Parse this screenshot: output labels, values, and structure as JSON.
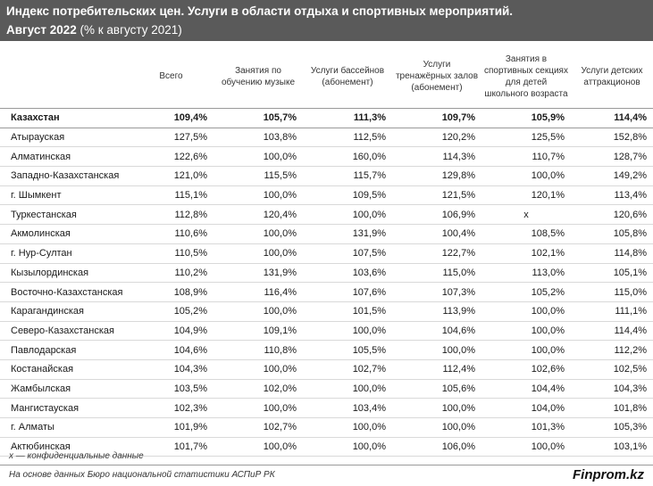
{
  "header": {
    "title": "Индекс потребительских цен. Услуги в области отдыха и спортивных мероприятий.",
    "subtitle_bold": "Август 2022",
    "subtitle_rest": " (% к августу 2021)"
  },
  "chart_data": {
    "type": "table",
    "columns": [
      "",
      "Всего",
      "Занятия по обучению музыке",
      "Услуги бассейнов (абонемент)",
      "Услуги тренажёрных залов (абонемент)",
      "Занятия в спортивных секциях для детей школьного возраста",
      "Услуги детских аттракционов"
    ],
    "rows": [
      [
        "Казахстан",
        "109,4%",
        "105,7%",
        "111,3%",
        "109,7%",
        "105,9%",
        "114,4%"
      ],
      [
        "Атырауская",
        "127,5%",
        "103,8%",
        "112,5%",
        "120,2%",
        "125,5%",
        "152,8%"
      ],
      [
        "Алматинская",
        "122,6%",
        "100,0%",
        "160,0%",
        "114,3%",
        "110,7%",
        "128,7%"
      ],
      [
        "Западно-Казахстанская",
        "121,0%",
        "115,5%",
        "115,7%",
        "129,8%",
        "100,0%",
        "149,2%"
      ],
      [
        "г. Шымкент",
        "115,1%",
        "100,0%",
        "109,5%",
        "121,5%",
        "120,1%",
        "113,4%"
      ],
      [
        "Туркестанская",
        "112,8%",
        "120,4%",
        "100,0%",
        "106,9%",
        "x",
        "120,6%"
      ],
      [
        "Акмолинская",
        "110,6%",
        "100,0%",
        "131,9%",
        "100,4%",
        "108,5%",
        "105,8%"
      ],
      [
        "г. Нур-Султан",
        "110,5%",
        "100,0%",
        "107,5%",
        "122,7%",
        "102,1%",
        "114,8%"
      ],
      [
        "Кызылординская",
        "110,2%",
        "131,9%",
        "103,6%",
        "115,0%",
        "113,0%",
        "105,1%"
      ],
      [
        "Восточно-Казахстанская",
        "108,9%",
        "116,4%",
        "107,6%",
        "107,3%",
        "105,2%",
        "115,0%"
      ],
      [
        "Карагандинская",
        "105,2%",
        "100,0%",
        "101,5%",
        "113,9%",
        "100,0%",
        "111,1%"
      ],
      [
        "Северо-Казахстанская",
        "104,9%",
        "109,1%",
        "100,0%",
        "104,6%",
        "100,0%",
        "114,4%"
      ],
      [
        "Павлодарская",
        "104,6%",
        "110,8%",
        "105,5%",
        "100,0%",
        "100,0%",
        "112,2%"
      ],
      [
        "Костанайская",
        "104,3%",
        "100,0%",
        "102,7%",
        "112,4%",
        "102,6%",
        "102,5%"
      ],
      [
        "Жамбылская",
        "103,5%",
        "102,0%",
        "100,0%",
        "105,6%",
        "104,4%",
        "104,3%"
      ],
      [
        "Мангистауская",
        "102,3%",
        "100,0%",
        "103,4%",
        "100,0%",
        "104,0%",
        "101,8%"
      ],
      [
        "г. Алматы",
        "101,9%",
        "102,7%",
        "100,0%",
        "100,0%",
        "101,3%",
        "105,3%"
      ],
      [
        "Актюбинская",
        "101,7%",
        "100,0%",
        "100,0%",
        "106,0%",
        "100,0%",
        "103,1%"
      ]
    ]
  },
  "note": "х — конфиденциальные данные",
  "footer": {
    "source": "На основе данных Бюро национальной статистики АСПиР РК",
    "brand": "Finprom.kz"
  }
}
